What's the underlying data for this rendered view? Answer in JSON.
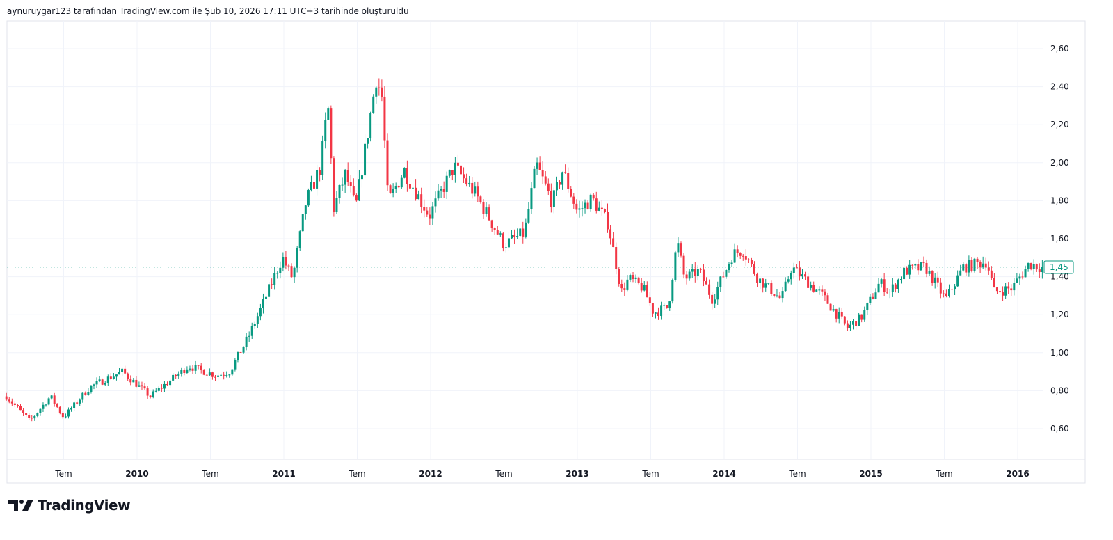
{
  "caption": "aynuruygar123 tarafından TradingView.com ile Şub 10, 2026 17:11 UTC+3 tarihinde oluşturuldu",
  "logo": {
    "text": "TradingView",
    "icon": "tradingview-logo-icon"
  },
  "colors": {
    "up": "#089981",
    "down": "#f23645",
    "grid": "#f0f3fa",
    "border": "#e0e3eb"
  },
  "chart_data": {
    "type": "candlestick",
    "interval": "weekly",
    "y_ticks": [
      {
        "value": 0.6,
        "label": "0,60"
      },
      {
        "value": 0.8,
        "label": "0,80"
      },
      {
        "value": 1.0,
        "label": "1,00"
      },
      {
        "value": 1.2,
        "label": "1,20"
      },
      {
        "value": 1.4,
        "label": "1,40"
      },
      {
        "value": 1.6,
        "label": "1,60"
      },
      {
        "value": 1.8,
        "label": "1,80"
      },
      {
        "value": 2.0,
        "label": "2,00"
      },
      {
        "value": 2.2,
        "label": "2,20"
      },
      {
        "value": 2.4,
        "label": "2,40"
      },
      {
        "value": 2.6,
        "label": "2,60"
      }
    ],
    "ylim": [
      0.47,
      2.75
    ],
    "xlim": [
      2009.11,
      2016.17
    ],
    "x_ticks": [
      {
        "t": 2009.5,
        "label": "Tem",
        "year": false
      },
      {
        "t": 2010.0,
        "label": "2010",
        "year": true
      },
      {
        "t": 2010.5,
        "label": "Tem",
        "year": false
      },
      {
        "t": 2011.0,
        "label": "2011",
        "year": true
      },
      {
        "t": 2011.5,
        "label": "Tem",
        "year": false
      },
      {
        "t": 2012.0,
        "label": "2012",
        "year": true
      },
      {
        "t": 2012.5,
        "label": "Tem",
        "year": false
      },
      {
        "t": 2013.0,
        "label": "2013",
        "year": true
      },
      {
        "t": 2013.5,
        "label": "Tem",
        "year": false
      },
      {
        "t": 2014.0,
        "label": "2014",
        "year": true
      },
      {
        "t": 2014.5,
        "label": "Tem",
        "year": false
      },
      {
        "t": 2015.0,
        "label": "2015",
        "year": true
      },
      {
        "t": 2015.5,
        "label": "Tem",
        "year": false
      },
      {
        "t": 2016.0,
        "label": "2016",
        "year": true
      }
    ],
    "last_price": {
      "value": 1.45,
      "label": "1,45"
    },
    "close_path": [
      [
        2009.11,
        0.77
      ],
      [
        2009.27,
        0.64
      ],
      [
        2009.41,
        0.77
      ],
      [
        2009.5,
        0.66
      ],
      [
        2009.68,
        0.82
      ],
      [
        2009.9,
        0.9
      ],
      [
        2010.09,
        0.77
      ],
      [
        2010.35,
        0.93
      ],
      [
        2010.54,
        0.88
      ],
      [
        2010.63,
        0.9
      ],
      [
        2010.77,
        1.1
      ],
      [
        2010.87,
        1.28
      ],
      [
        2010.99,
        1.5
      ],
      [
        2011.06,
        1.39
      ],
      [
        2011.15,
        1.79
      ],
      [
        2011.25,
        1.98
      ],
      [
        2011.3,
        2.31
      ],
      [
        2011.34,
        1.76
      ],
      [
        2011.42,
        1.94
      ],
      [
        2011.49,
        1.76
      ],
      [
        2011.58,
        2.2
      ],
      [
        2011.63,
        2.45
      ],
      [
        2011.67,
        2.34
      ],
      [
        2011.71,
        1.79
      ],
      [
        2011.82,
        1.96
      ],
      [
        2011.99,
        1.72
      ],
      [
        2012.16,
        1.98
      ],
      [
        2012.31,
        1.83
      ],
      [
        2012.5,
        1.57
      ],
      [
        2012.64,
        1.63
      ],
      [
        2012.72,
        1.99
      ],
      [
        2012.83,
        1.79
      ],
      [
        2012.9,
        1.96
      ],
      [
        2013.0,
        1.74
      ],
      [
        2013.1,
        1.81
      ],
      [
        2013.21,
        1.68
      ],
      [
        2013.3,
        1.32
      ],
      [
        2013.35,
        1.39
      ],
      [
        2013.45,
        1.34
      ],
      [
        2013.52,
        1.21
      ],
      [
        2013.62,
        1.24
      ],
      [
        2013.68,
        1.59
      ],
      [
        2013.73,
        1.39
      ],
      [
        2013.83,
        1.43
      ],
      [
        2013.92,
        1.28
      ],
      [
        2014.06,
        1.52
      ],
      [
        2014.13,
        1.54
      ],
      [
        2014.23,
        1.39
      ],
      [
        2014.39,
        1.28
      ],
      [
        2014.46,
        1.45
      ],
      [
        2014.67,
        1.3
      ],
      [
        2014.84,
        1.13
      ],
      [
        2014.94,
        1.19
      ],
      [
        2015.06,
        1.37
      ],
      [
        2015.13,
        1.32
      ],
      [
        2015.23,
        1.43
      ],
      [
        2015.37,
        1.45
      ],
      [
        2015.51,
        1.28
      ],
      [
        2015.63,
        1.45
      ],
      [
        2015.79,
        1.48
      ],
      [
        2015.84,
        1.32
      ],
      [
        2015.96,
        1.34
      ],
      [
        2016.08,
        1.47
      ],
      [
        2016.16,
        1.45
      ]
    ]
  }
}
